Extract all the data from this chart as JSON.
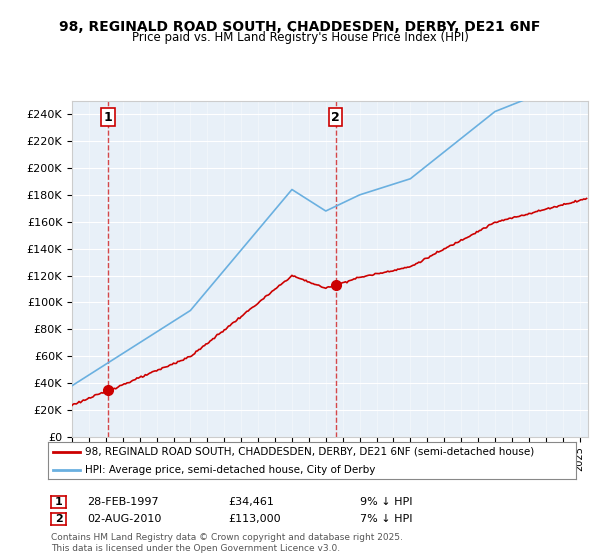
{
  "title": "98, REGINALD ROAD SOUTH, CHADDESDEN, DERBY, DE21 6NF",
  "subtitle": "Price paid vs. HM Land Registry's House Price Index (HPI)",
  "legend_line1": "98, REGINALD ROAD SOUTH, CHADDESDEN, DERBY, DE21 6NF (semi-detached house)",
  "legend_line2": "HPI: Average price, semi-detached house, City of Derby",
  "annotation1_label": "1",
  "annotation1_date": "28-FEB-1997",
  "annotation1_price": "£34,461",
  "annotation1_hpi": "9% ↓ HPI",
  "annotation2_label": "2",
  "annotation2_date": "02-AUG-2010",
  "annotation2_price": "£113,000",
  "annotation2_hpi": "7% ↓ HPI",
  "footnote": "Contains HM Land Registry data © Crown copyright and database right 2025.\nThis data is licensed under the Open Government Licence v3.0.",
  "sale1_year": 1997.15,
  "sale1_price": 34461,
  "sale2_year": 2010.58,
  "sale2_price": 113000,
  "hpi_color": "#6ab0e0",
  "price_color": "#cc0000",
  "plot_bg_color": "#e8f0f8",
  "ylim": [
    0,
    250000
  ],
  "xlim_start": 1995,
  "xlim_end": 2025.5
}
